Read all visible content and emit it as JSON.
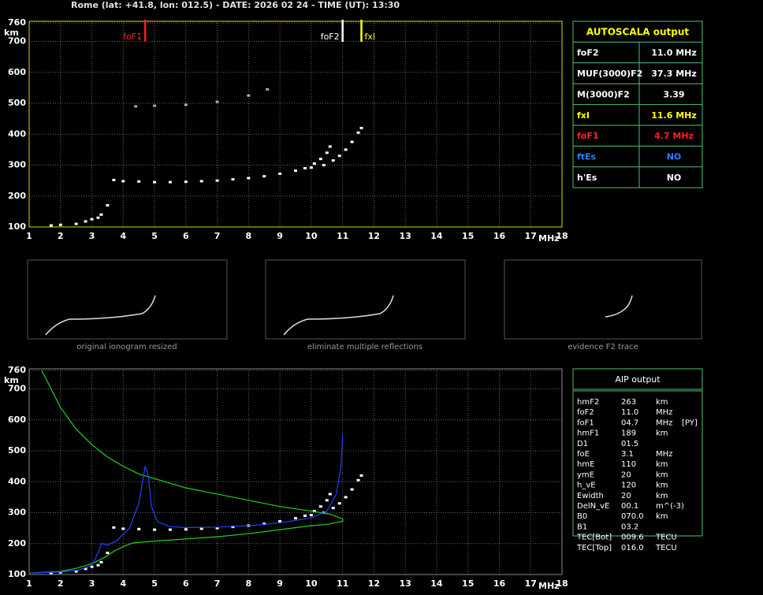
{
  "header": {
    "title": "Rome (lat: +41.8, lon: 012.5) - DATE: 2026 02 24 - TIME (UT): 13:30"
  },
  "chart_data": [
    {
      "type": "ionogram",
      "xlabel": "MHz",
      "ylabel": "km",
      "xlim": [
        1,
        18
      ],
      "ylim": [
        100,
        760
      ],
      "xticks": [
        1,
        2,
        3,
        4,
        5,
        6,
        7,
        8,
        9,
        10,
        11,
        12,
        13,
        14,
        15,
        16,
        17,
        18
      ],
      "yticks": [
        100,
        200,
        300,
        400,
        500,
        600,
        700,
        760
      ],
      "grid": true,
      "frame_color": "#d8d800",
      "series": [
        {
          "color": "#ffffff",
          "style": "dots",
          "x": [
            1.7,
            2.0,
            2.5,
            2.8,
            3.0,
            3.2,
            3.3,
            3.5
          ],
          "values": [
            105,
            107,
            110,
            118,
            125,
            130,
            140,
            170
          ]
        },
        {
          "color": "#ffffff",
          "style": "dots",
          "x": [
            3.7,
            4.0,
            4.5,
            5.0,
            5.5,
            6.0,
            6.5,
            7.0,
            7.5,
            8.0,
            8.5,
            9.0,
            9.5,
            9.8,
            10.1,
            10.3,
            10.5,
            10.6
          ],
          "values": [
            252,
            248,
            247,
            245,
            245,
            246,
            248,
            250,
            254,
            258,
            264,
            272,
            282,
            290,
            305,
            320,
            340,
            360
          ]
        },
        {
          "color": "#ffffff",
          "style": "dots",
          "x": [
            10.0,
            10.4,
            10.7,
            10.9,
            11.1,
            11.3,
            11.5,
            11.6
          ],
          "values": [
            292,
            300,
            315,
            330,
            350,
            375,
            405,
            420
          ]
        },
        {
          "color": "#aaaaaa",
          "style": "dots",
          "x": [
            4.4,
            5.0,
            6.0,
            7.0,
            8.0,
            8.6
          ],
          "values": [
            490,
            492,
            495,
            505,
            525,
            545
          ]
        }
      ],
      "markers": [
        {
          "name": "foF1",
          "value": 4.7,
          "color": "#ff2020",
          "label_side": "left"
        },
        {
          "name": "foF2",
          "value": 11.0,
          "color": "#ffffff",
          "label_side": "left"
        },
        {
          "name": "fxI",
          "value": 11.6,
          "color": "#ffff00",
          "label_side": "right"
        }
      ]
    },
    {
      "type": "ionogram",
      "xlabel": "MHz",
      "ylabel": "km",
      "xlim": [
        1,
        18
      ],
      "ylim": [
        100,
        760
      ],
      "xticks": [
        1,
        2,
        3,
        4,
        5,
        6,
        7,
        8,
        9,
        10,
        11,
        12,
        13,
        14,
        15,
        16,
        17,
        18
      ],
      "yticks": [
        100,
        200,
        300,
        400,
        500,
        600,
        700,
        760
      ],
      "grid": true,
      "frame_color": "#888888",
      "series": [
        {
          "color": "#ffffff",
          "style": "dots",
          "x": [
            1.7,
            2.0,
            2.5,
            2.8,
            3.0,
            3.2,
            3.3,
            3.5
          ],
          "values": [
            105,
            107,
            110,
            118,
            125,
            130,
            140,
            170
          ]
        },
        {
          "color": "#ffffff",
          "style": "dots",
          "x": [
            3.7,
            4.0,
            4.5,
            5.0,
            5.5,
            6.0,
            6.5,
            7.0,
            7.5,
            8.0,
            8.5,
            9.0,
            9.5,
            9.8,
            10.1,
            10.3,
            10.5,
            10.6
          ],
          "values": [
            252,
            248,
            247,
            245,
            245,
            246,
            248,
            250,
            254,
            258,
            264,
            272,
            282,
            290,
            305,
            320,
            340,
            360
          ]
        },
        {
          "color": "#ffffff",
          "style": "dots",
          "x": [
            10.0,
            10.4,
            10.7,
            10.9,
            11.1,
            11.3,
            11.5,
            11.6
          ],
          "values": [
            292,
            300,
            315,
            330,
            350,
            375,
            405,
            420
          ]
        },
        {
          "color": "#20d020",
          "style": "line",
          "x": [
            1.4,
            1.7,
            2.0,
            2.5,
            3.0,
            3.5,
            4.0,
            4.5,
            5.0,
            6.0,
            7.0,
            8.0,
            9.0,
            10.0,
            10.6,
            11.0,
            11.0,
            10.5,
            10.0,
            9.0,
            8.0,
            7.0,
            6.0,
            5.0,
            4.3,
            4.0,
            3.7,
            3.4,
            3.0,
            2.5,
            2.0,
            1.0
          ],
          "values": [
            760,
            700,
            640,
            570,
            520,
            480,
            450,
            425,
            410,
            380,
            360,
            340,
            320,
            305,
            295,
            280,
            272,
            262,
            258,
            245,
            232,
            222,
            215,
            208,
            202,
            190,
            175,
            155,
            135,
            120,
            110,
            105
          ]
        },
        {
          "color": "#2040ff",
          "style": "line",
          "x": [
            1.0,
            2.0,
            2.6,
            3.0,
            3.2,
            3.3,
            3.5,
            3.8,
            4.2,
            4.5,
            4.7,
            4.8,
            4.9,
            5.1,
            5.5,
            6.0,
            7.0,
            8.0,
            9.0,
            10.0,
            10.5,
            10.8,
            10.95,
            11.0
          ],
          "values": [
            105,
            108,
            115,
            130,
            170,
            200,
            195,
            210,
            250,
            330,
            450,
            420,
            320,
            270,
            255,
            252,
            253,
            258,
            267,
            283,
            305,
            360,
            450,
            550
          ]
        }
      ],
      "markers": []
    }
  ],
  "thumbnails": [
    {
      "caption": "original ionogram resized"
    },
    {
      "caption": "eliminate multiple reflections"
    },
    {
      "caption": "evidence F2 trace"
    }
  ],
  "autoscala": {
    "title": "AUTOSCALA output",
    "rows": [
      {
        "label": "foF2",
        "value": "11.0 MHz",
        "color": "#ffffff"
      },
      {
        "label": "MUF(3000)F2",
        "value": "37.3 MHz",
        "color": "#ffffff"
      },
      {
        "label": "M(3000)F2",
        "value": "3.39",
        "color": "#ffffff"
      },
      {
        "label": "fxI",
        "value": "11.6 MHz",
        "color": "#ffff00"
      },
      {
        "label": "foF1",
        "value": "4.7 MHz",
        "color": "#ff2020"
      },
      {
        "label": "ftEs",
        "value": "NO",
        "color": "#2a7fff"
      },
      {
        "label": "h'Es",
        "value": "NO",
        "color": "#ffffff"
      }
    ]
  },
  "aip": {
    "title": "AIP output",
    "rows": [
      [
        "hmF2",
        "263",
        "km"
      ],
      [
        "foF2",
        "11.0",
        "MHz"
      ],
      [
        "foF1",
        "04.7",
        "MHz",
        "[PY]"
      ],
      [
        "hmF1",
        "189",
        "km"
      ],
      [
        "D1",
        "01.5"
      ],
      [
        "foE",
        "3.1",
        "MHz"
      ],
      [
        "hmE",
        "110",
        "km"
      ],
      [
        "ymE",
        "20",
        "km"
      ],
      [
        "h_vE",
        "120",
        "km"
      ],
      [
        "Ewidth",
        "20",
        "km"
      ],
      [
        "DelN_vE",
        "00.1",
        "m^(-3)"
      ],
      [
        "B0",
        "070.0",
        "km"
      ],
      [
        "B1",
        "03.2"
      ],
      [
        "TEC[Bot]",
        "009.6",
        "TECU"
      ],
      [
        "TEC[Top]",
        "016.0",
        "TECU"
      ]
    ]
  }
}
